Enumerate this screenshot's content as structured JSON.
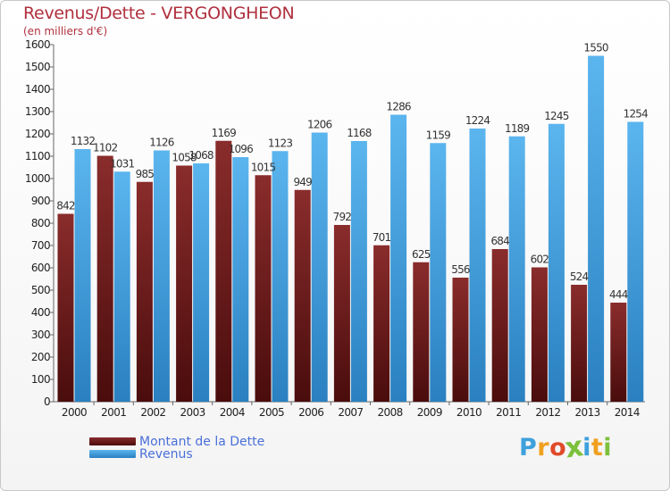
{
  "title": "Revenus/Dette - VERGONGHEON",
  "subtitle": "(en milliers d'€)",
  "logo": {
    "letters": [
      "P",
      "r",
      "o",
      "x",
      "i",
      "t",
      "i"
    ],
    "colors": [
      "#3ea0dc",
      "#f0a020",
      "#e04a2a",
      "#7cc03c",
      "#3ea0dc",
      "#f0a020",
      "#7cc03c"
    ]
  },
  "legend": [
    {
      "name": "Montant de la Dette",
      "color": "#7a2424"
    },
    {
      "name": "Revenus",
      "color": "#4aa8e8"
    }
  ],
  "chart_data": {
    "type": "bar",
    "categories": [
      "2000",
      "2001",
      "2002",
      "2003",
      "2004",
      "2005",
      "2006",
      "2007",
      "2008",
      "2009",
      "2010",
      "2011",
      "2012",
      "2013",
      "2014"
    ],
    "series": [
      {
        "name": "Montant de la Dette",
        "color": "#7a2424",
        "values": [
          842,
          1102,
          985,
          1058,
          1169,
          1015,
          949,
          792,
          701,
          625,
          556,
          684,
          602,
          524,
          444
        ],
        "labels": [
          "842",
          "1102",
          "985",
          "1058",
          "1169",
          "1015",
          "949",
          "792",
          "701",
          "625",
          "556",
          "684",
          "602",
          "524",
          "444"
        ]
      },
      {
        "name": "Revenus",
        "color": "#4aa8e8",
        "values": [
          1132,
          1031,
          1126,
          1068,
          1096,
          1123,
          1206,
          1168,
          1286,
          1159,
          1224,
          1189,
          1245,
          1550,
          1254
        ],
        "labels": [
          "1132",
          "1031",
          "1126",
          "1068",
          "1096",
          "1123",
          "1206",
          "1168",
          "1286",
          "1159",
          "1224",
          "1189",
          "1245",
          "1550",
          "1254"
        ]
      }
    ],
    "ylim": [
      0,
      1600
    ],
    "yticks": [
      0,
      100,
      200,
      300,
      400,
      500,
      600,
      700,
      800,
      900,
      1000,
      1100,
      1200,
      1300,
      1400,
      1500,
      1600
    ],
    "grid": false,
    "legend_position": "bottom-left"
  }
}
